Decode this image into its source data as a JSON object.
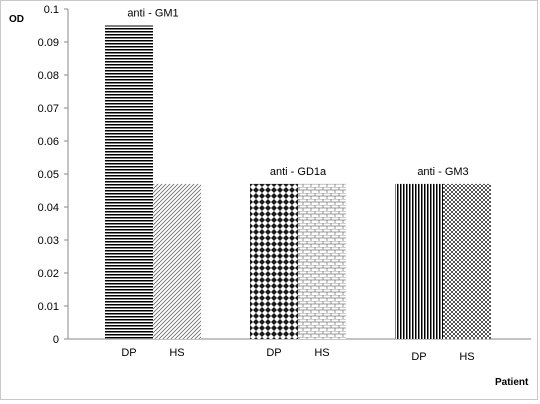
{
  "chart_data": {
    "type": "bar",
    "ylabel": "OD",
    "xlabel": "Patient",
    "ylim": [
      0,
      0.1
    ],
    "yticks": [
      "0",
      "0.01",
      "0.02",
      "0.03",
      "0.04",
      "0.05",
      "0.06",
      "0.07",
      "0.08",
      "0.09",
      "0.1"
    ],
    "groups": [
      {
        "label": "anti - GM1",
        "bars": [
          {
            "category": "DP",
            "value": 0.095,
            "pattern": "hlines"
          },
          {
            "category": "HS",
            "value": 0.047,
            "pattern": "diag"
          }
        ]
      },
      {
        "label": "anti - GD1a",
        "bars": [
          {
            "category": "DP",
            "value": 0.047,
            "pattern": "diamonds"
          },
          {
            "category": "HS",
            "value": 0.047,
            "pattern": "brick"
          }
        ]
      },
      {
        "label": "anti - GM3",
        "bars": [
          {
            "category": "DP",
            "value": 0.047,
            "pattern": "vlines"
          },
          {
            "category": "HS",
            "value": 0.047,
            "pattern": "checker"
          }
        ]
      }
    ],
    "grid": false,
    "legend": "none"
  }
}
